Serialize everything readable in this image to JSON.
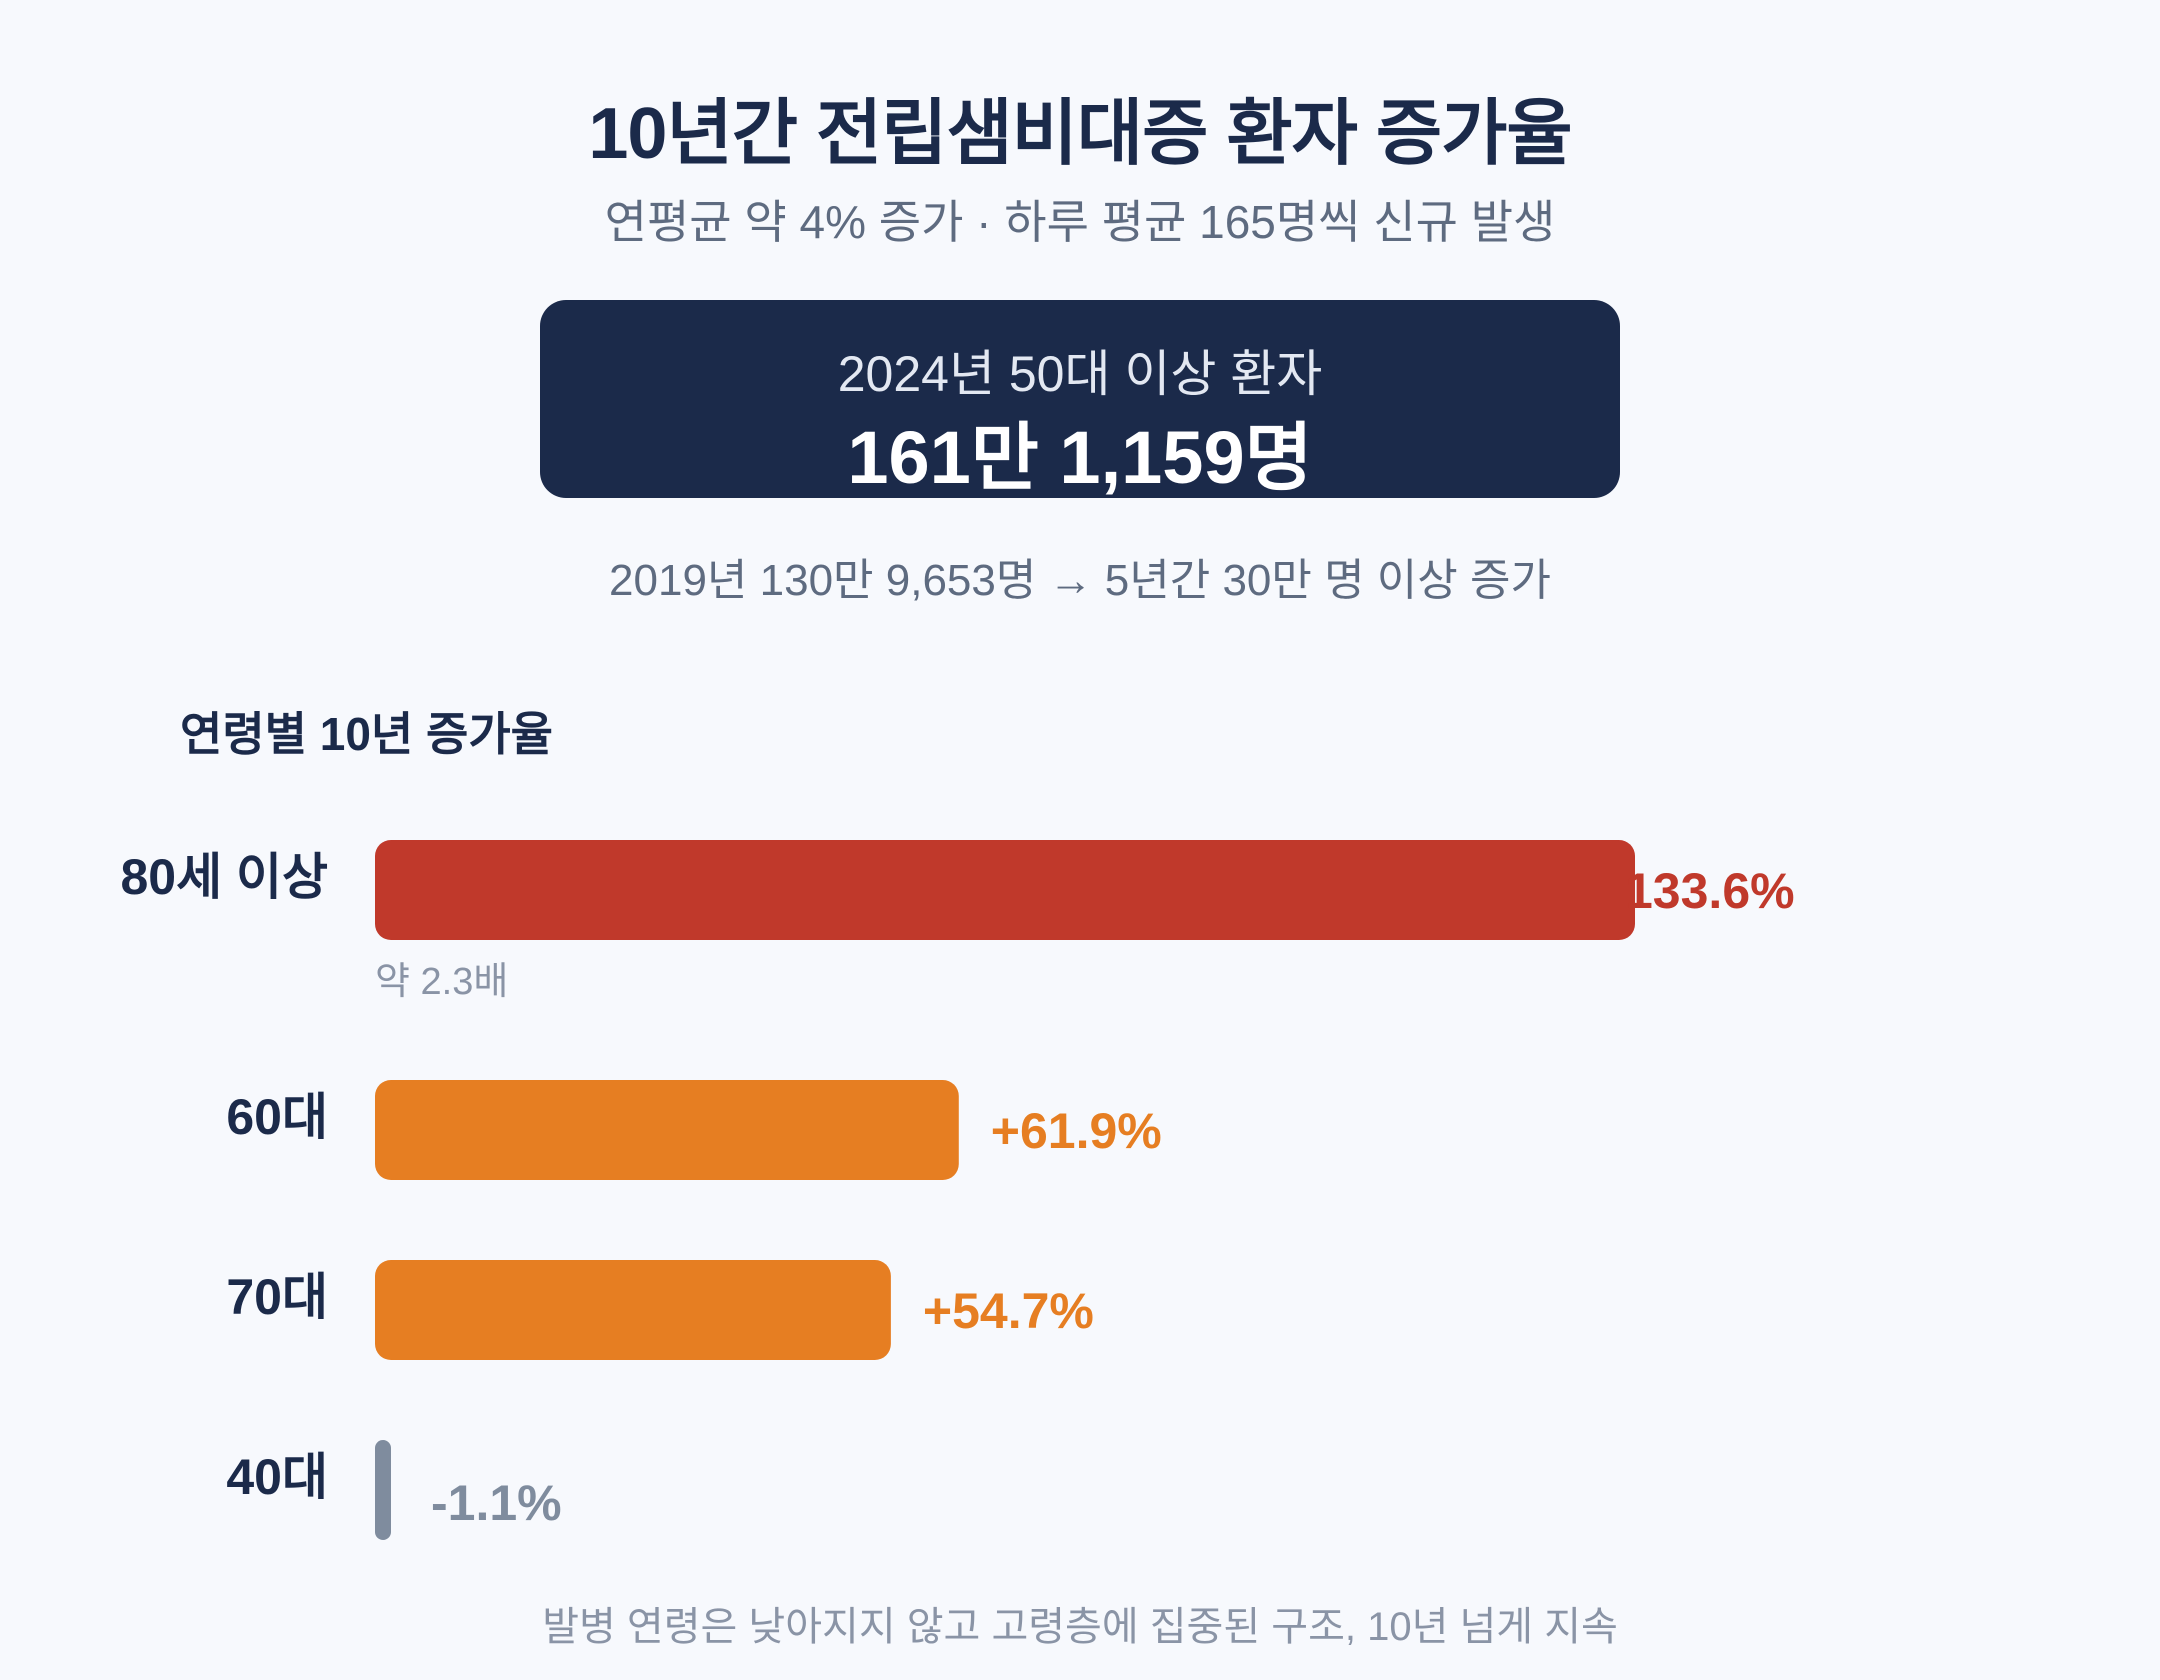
{
  "header": {
    "title": "10년간 전립샘비대증 환자 증가율",
    "subtitle": "연평균 약 4% 증가 · 하루 평균 165명씩 신규 발생"
  },
  "highlight": {
    "label": "2024년 50대 이상 환자",
    "value": "161만 1,159명"
  },
  "comparison": "2019년 130만 9,653명 → 5년간 30만 명 이상 증가",
  "footnote": "발병 연령은 낮아지지 않고 고령층에 집중된 구조, 10년 넘게 지속",
  "colors": {
    "navy": "#1b2a4a",
    "red": "#c0392b",
    "orange": "#e67e22",
    "gray": "#7f8c9e"
  },
  "chart_data": {
    "type": "bar",
    "orientation": "horizontal",
    "title": "연령별 10년 증가율",
    "categories": [
      "80세 이상",
      "60대",
      "70대",
      "40대"
    ],
    "values": [
      133.6,
      61.9,
      54.7,
      -1.1
    ],
    "value_labels": [
      "133.6%",
      "+61.9%",
      "+54.7%",
      "-1.1%"
    ],
    "bar_colors": [
      "#c0392b",
      "#e67e22",
      "#e67e22",
      "#7f8c9e"
    ],
    "annotations": [
      {
        "category": "80세 이상",
        "text": "약 2.3배"
      }
    ],
    "xlim": [
      0,
      133.6
    ]
  }
}
